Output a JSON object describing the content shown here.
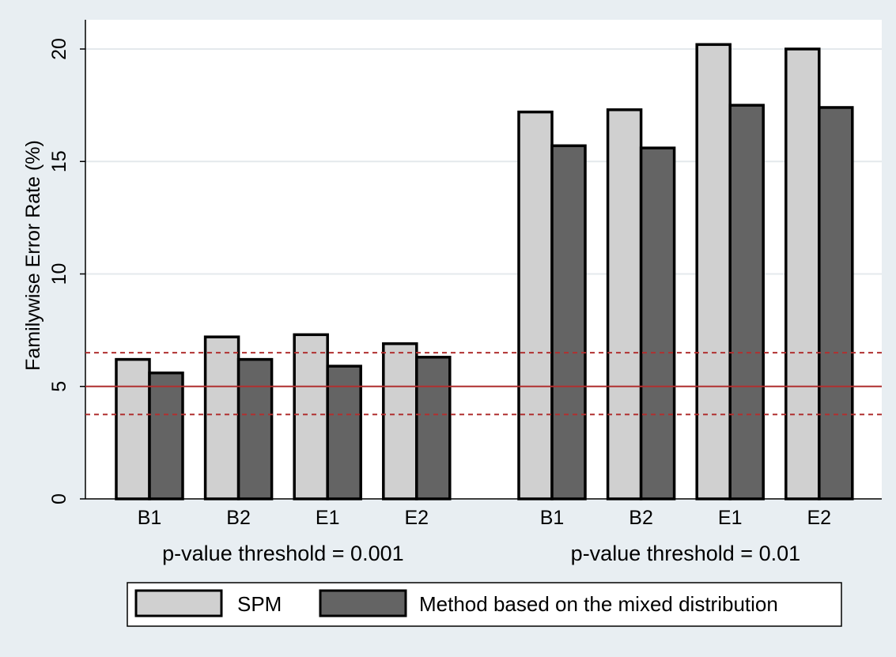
{
  "chart_data": {
    "type": "bar",
    "ylabel": "Familywise Error Rate (%)",
    "ylim": [
      0,
      21.3
    ],
    "yticks": [
      0,
      5,
      10,
      15,
      20
    ],
    "grid": true,
    "groups": [
      {
        "label": "p-value threshold = 0.001",
        "categories": [
          "B1",
          "B2",
          "E1",
          "E2"
        ]
      },
      {
        "label": "p-value threshold = 0.01",
        "categories": [
          "B1",
          "B2",
          "E1",
          "E2"
        ]
      }
    ],
    "series": [
      {
        "name": "SPM",
        "color": "#d0d0d0",
        "values": [
          [
            6.2,
            7.2,
            7.3,
            6.9
          ],
          [
            17.2,
            17.3,
            20.2,
            20.0
          ]
        ]
      },
      {
        "name": "Method based on the mixed distribution",
        "color": "#646464",
        "values": [
          [
            5.6,
            6.2,
            5.9,
            6.3
          ],
          [
            15.7,
            15.6,
            17.5,
            17.4
          ]
        ]
      }
    ],
    "reference_lines": [
      {
        "value": 5,
        "style": "solid",
        "color": "#b03030"
      },
      {
        "value": 6.5,
        "style": "dashed",
        "color": "#b03030"
      },
      {
        "value": 3.75,
        "style": "dashed",
        "color": "#b03030"
      }
    ],
    "legend_position": "bottom"
  }
}
